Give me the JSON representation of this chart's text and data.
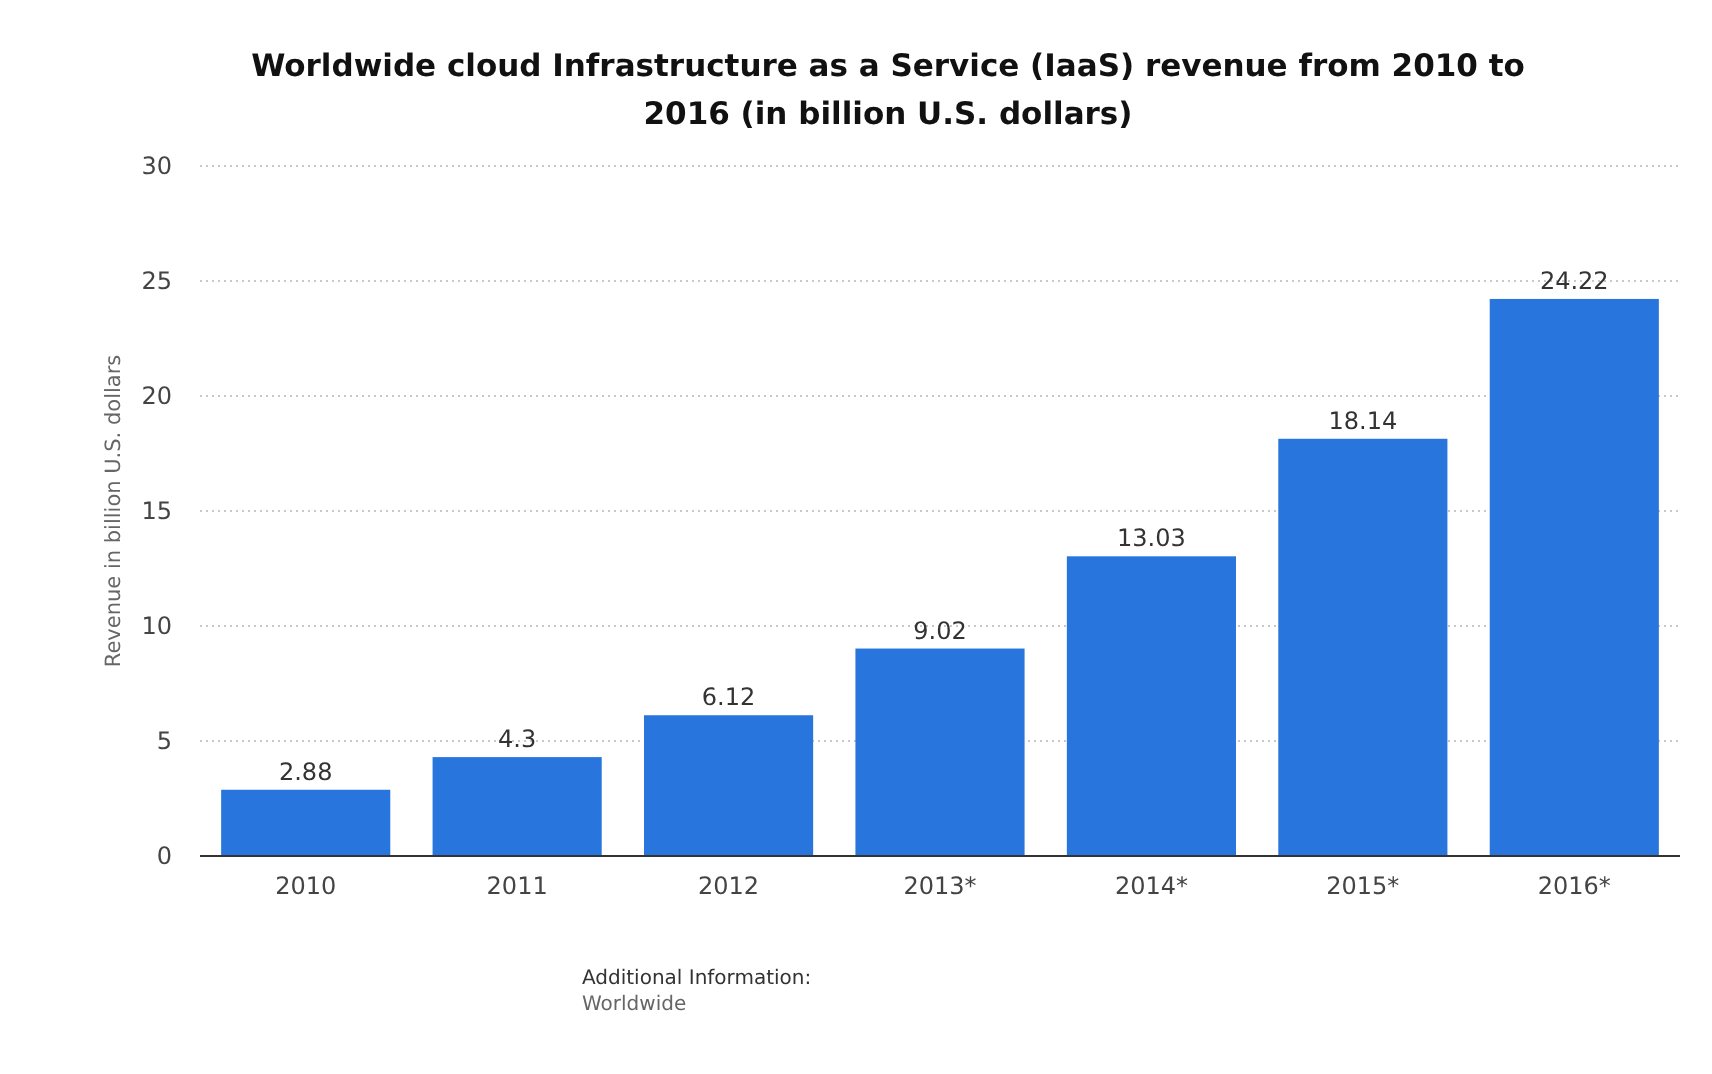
{
  "chart_data": {
    "type": "bar",
    "title": "Worldwide cloud Infrastructure as a Service (IaaS) revenue from 2010 to 2016 (in billion U.S. dollars)",
    "ylabel": "Revenue in billion U.S. dollars",
    "categories": [
      "2010",
      "2011",
      "2012",
      "2013*",
      "2014*",
      "2015*",
      "2016*"
    ],
    "values": [
      2.88,
      4.3,
      6.12,
      9.02,
      13.03,
      18.14,
      24.22
    ],
    "color": "#2876dd",
    "ylim": [
      0,
      30
    ],
    "yticks": [
      0,
      5,
      10,
      15,
      20,
      25,
      30
    ],
    "grid": "y",
    "data_labels": true,
    "annotations": [
      "Additional Information:",
      "Worldwide"
    ]
  }
}
